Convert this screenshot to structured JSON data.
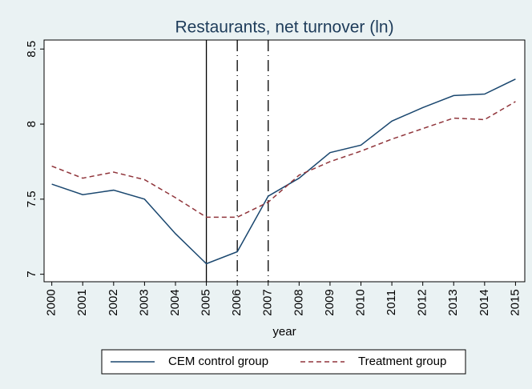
{
  "chart_data": {
    "type": "line",
    "title": "Restaurants, net turnover (ln)",
    "xlabel": "year",
    "x": [
      2000,
      2001,
      2002,
      2003,
      2004,
      2005,
      2006,
      2007,
      2008,
      2009,
      2010,
      2011,
      2012,
      2013,
      2014,
      2015
    ],
    "series": [
      {
        "name": "CEM control group",
        "color": "#1a476f",
        "dash": "solid",
        "values": [
          7.6,
          7.53,
          7.56,
          7.5,
          7.27,
          7.07,
          7.15,
          7.52,
          7.64,
          7.81,
          7.86,
          8.02,
          8.11,
          8.19,
          8.2,
          8.3
        ]
      },
      {
        "name": "Treatment group",
        "color": "#90353b",
        "dash": "dashed",
        "values": [
          7.72,
          7.64,
          7.68,
          7.63,
          7.51,
          7.38,
          7.38,
          7.48,
          7.66,
          7.75,
          7.82,
          7.9,
          7.97,
          8.04,
          8.03,
          8.15
        ]
      }
    ],
    "reference_lines": [
      {
        "x": 2005,
        "style": "solid"
      },
      {
        "x": 2006,
        "style": "longdash-dot"
      },
      {
        "x": 2007,
        "style": "longdash-dot"
      }
    ],
    "xlim": [
      1999.75,
      2015.3
    ],
    "xticks": [
      2000,
      2001,
      2002,
      2003,
      2004,
      2005,
      2006,
      2007,
      2008,
      2009,
      2010,
      2011,
      2012,
      2013,
      2014,
      2015
    ],
    "ylim": [
      6.95,
      8.56
    ],
    "yticks": [
      7,
      7.5,
      8,
      8.5
    ],
    "grid": false,
    "legend": "bottom"
  }
}
